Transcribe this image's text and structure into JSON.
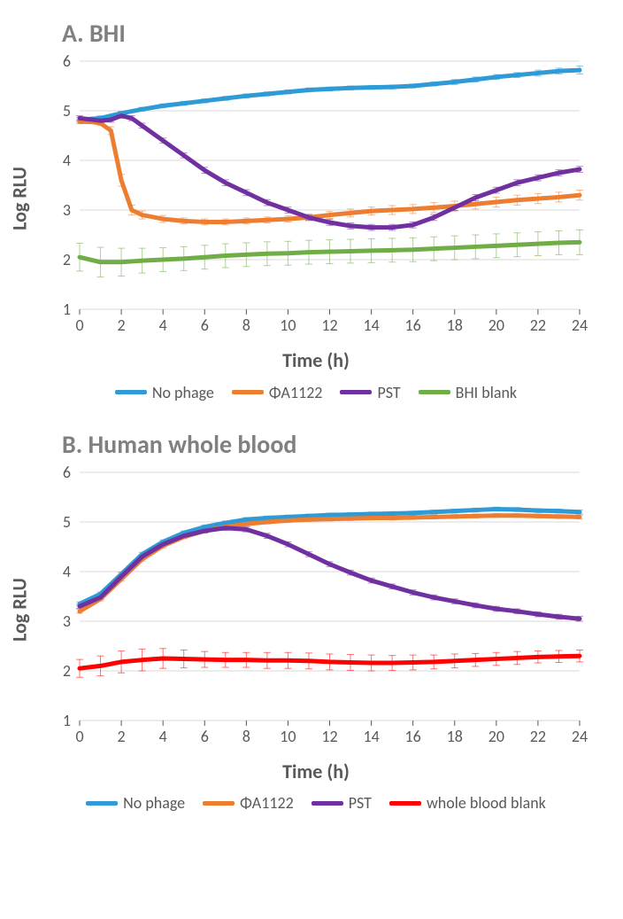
{
  "panelA": {
    "title": "A. BHI",
    "type": "line",
    "xlabel": "Time (h)",
    "ylabel": "Log RLU",
    "xlim": [
      0,
      24
    ],
    "ylim": [
      1,
      6
    ],
    "xtick_step": 2,
    "ytick_step": 1,
    "grid_color": "#d9d9d9",
    "background_color": "#ffffff",
    "title_fontsize": 28,
    "label_fontsize": 22,
    "tick_fontsize": 18,
    "line_width": 5,
    "series": [
      {
        "name": "No phage",
        "color": "#2e9bd6",
        "x": [
          0,
          1,
          2,
          3,
          4,
          5,
          6,
          7,
          8,
          9,
          10,
          11,
          12,
          13,
          14,
          15,
          16,
          17,
          18,
          19,
          20,
          21,
          22,
          23,
          24
        ],
        "y": [
          4.82,
          4.85,
          4.95,
          5.03,
          5.1,
          5.15,
          5.2,
          5.25,
          5.3,
          5.34,
          5.38,
          5.42,
          5.44,
          5.46,
          5.47,
          5.48,
          5.5,
          5.54,
          5.58,
          5.63,
          5.68,
          5.72,
          5.76,
          5.8,
          5.82
        ],
        "err": [
          0.05,
          0.05,
          0.04,
          0.04,
          0.04,
          0.04,
          0.04,
          0.04,
          0.04,
          0.04,
          0.04,
          0.04,
          0.04,
          0.04,
          0.04,
          0.04,
          0.04,
          0.04,
          0.05,
          0.05,
          0.05,
          0.05,
          0.06,
          0.06,
          0.08
        ]
      },
      {
        "name": "ΦA1122",
        "color": "#ed7d31",
        "x": [
          0,
          0.5,
          1,
          1.5,
          2,
          2.5,
          3,
          4,
          5,
          6,
          7,
          8,
          9,
          10,
          11,
          12,
          13,
          14,
          15,
          16,
          17,
          18,
          19,
          20,
          21,
          22,
          23,
          24
        ],
        "y": [
          4.78,
          4.78,
          4.75,
          4.6,
          3.6,
          3.0,
          2.9,
          2.82,
          2.78,
          2.76,
          2.76,
          2.78,
          2.8,
          2.82,
          2.85,
          2.9,
          2.94,
          2.98,
          3.0,
          3.02,
          3.05,
          3.08,
          3.12,
          3.16,
          3.2,
          3.23,
          3.26,
          3.3
        ],
        "err": [
          0.04,
          0.04,
          0.05,
          0.08,
          0.12,
          0.1,
          0.08,
          0.07,
          0.06,
          0.06,
          0.06,
          0.06,
          0.06,
          0.06,
          0.06,
          0.07,
          0.08,
          0.08,
          0.09,
          0.09,
          0.1,
          0.1,
          0.1,
          0.1,
          0.1,
          0.1,
          0.1,
          0.1
        ]
      },
      {
        "name": "PST",
        "color": "#7030a0",
        "x": [
          0,
          1,
          1.5,
          2,
          2.5,
          3,
          4,
          5,
          6,
          7,
          8,
          9,
          10,
          11,
          12,
          13,
          14,
          15,
          16,
          17,
          18,
          19,
          20,
          21,
          22,
          23,
          24
        ],
        "y": [
          4.85,
          4.8,
          4.82,
          4.9,
          4.85,
          4.7,
          4.4,
          4.1,
          3.8,
          3.55,
          3.35,
          3.15,
          3.0,
          2.85,
          2.75,
          2.68,
          2.65,
          2.65,
          2.7,
          2.85,
          3.05,
          3.25,
          3.4,
          3.55,
          3.65,
          3.75,
          3.82
        ],
        "err": [
          0.05,
          0.05,
          0.05,
          0.05,
          0.05,
          0.05,
          0.05,
          0.05,
          0.06,
          0.06,
          0.06,
          0.06,
          0.06,
          0.06,
          0.06,
          0.06,
          0.06,
          0.06,
          0.06,
          0.06,
          0.06,
          0.06,
          0.06,
          0.06,
          0.06,
          0.06,
          0.06
        ]
      },
      {
        "name": "BHI blank",
        "color": "#70ad47",
        "x": [
          0,
          1,
          2,
          3,
          4,
          5,
          6,
          7,
          8,
          9,
          10,
          11,
          12,
          13,
          14,
          15,
          16,
          17,
          18,
          19,
          20,
          21,
          22,
          23,
          24
        ],
        "y": [
          2.05,
          1.95,
          1.95,
          1.98,
          2.0,
          2.02,
          2.05,
          2.08,
          2.1,
          2.12,
          2.13,
          2.15,
          2.16,
          2.17,
          2.18,
          2.19,
          2.2,
          2.22,
          2.24,
          2.26,
          2.28,
          2.3,
          2.32,
          2.34,
          2.35
        ],
        "err": [
          0.28,
          0.3,
          0.28,
          0.25,
          0.24,
          0.24,
          0.24,
          0.24,
          0.24,
          0.24,
          0.24,
          0.24,
          0.24,
          0.24,
          0.24,
          0.24,
          0.24,
          0.24,
          0.24,
          0.24,
          0.24,
          0.24,
          0.24,
          0.24,
          0.25
        ]
      }
    ],
    "legend": [
      {
        "label": "No phage",
        "color": "#2e9bd6"
      },
      {
        "label": "ΦA1122",
        "color": "#ed7d31"
      },
      {
        "label": "PST",
        "color": "#7030a0"
      },
      {
        "label": "BHI blank",
        "color": "#70ad47"
      }
    ]
  },
  "panelB": {
    "title": "B. Human whole blood",
    "type": "line",
    "xlabel": "Time (h)",
    "ylabel": "Log RLU",
    "xlim": [
      0,
      24
    ],
    "ylim": [
      1,
      6
    ],
    "xtick_step": 2,
    "ytick_step": 1,
    "grid_color": "#d9d9d9",
    "background_color": "#ffffff",
    "title_fontsize": 28,
    "label_fontsize": 22,
    "tick_fontsize": 18,
    "line_width": 5,
    "series": [
      {
        "name": "No phage",
        "color": "#2e9bd6",
        "x": [
          0,
          1,
          2,
          3,
          4,
          5,
          6,
          7,
          8,
          9,
          10,
          11,
          12,
          13,
          14,
          15,
          16,
          17,
          18,
          19,
          20,
          21,
          22,
          23,
          24
        ],
        "y": [
          3.35,
          3.55,
          3.95,
          4.35,
          4.6,
          4.78,
          4.9,
          4.98,
          5.05,
          5.08,
          5.1,
          5.12,
          5.14,
          5.15,
          5.16,
          5.17,
          5.18,
          5.2,
          5.22,
          5.24,
          5.26,
          5.25,
          5.23,
          5.22,
          5.2
        ],
        "err": [
          0.04,
          0.04,
          0.04,
          0.04,
          0.04,
          0.04,
          0.04,
          0.04,
          0.04,
          0.04,
          0.04,
          0.04,
          0.04,
          0.04,
          0.04,
          0.04,
          0.04,
          0.04,
          0.04,
          0.04,
          0.04,
          0.04,
          0.04,
          0.04,
          0.04
        ]
      },
      {
        "name": "ΦA1122",
        "color": "#ed7d31",
        "x": [
          0,
          1,
          2,
          3,
          4,
          5,
          6,
          7,
          8,
          9,
          10,
          11,
          12,
          13,
          14,
          15,
          16,
          17,
          18,
          19,
          20,
          21,
          22,
          23,
          24
        ],
        "y": [
          3.2,
          3.45,
          3.85,
          4.25,
          4.52,
          4.7,
          4.82,
          4.9,
          4.96,
          5.0,
          5.03,
          5.05,
          5.06,
          5.07,
          5.08,
          5.08,
          5.09,
          5.1,
          5.11,
          5.12,
          5.13,
          5.13,
          5.12,
          5.11,
          5.1
        ],
        "err": [
          0.04,
          0.04,
          0.04,
          0.04,
          0.04,
          0.04,
          0.04,
          0.04,
          0.04,
          0.04,
          0.04,
          0.04,
          0.04,
          0.04,
          0.04,
          0.04,
          0.04,
          0.04,
          0.04,
          0.04,
          0.04,
          0.04,
          0.04,
          0.04,
          0.04
        ]
      },
      {
        "name": "PST",
        "color": "#7030a0",
        "x": [
          0,
          1,
          2,
          3,
          4,
          5,
          6,
          7,
          8,
          9,
          10,
          11,
          12,
          13,
          14,
          15,
          16,
          17,
          18,
          19,
          20,
          21,
          22,
          23,
          24
        ],
        "y": [
          3.3,
          3.48,
          3.9,
          4.3,
          4.55,
          4.72,
          4.82,
          4.88,
          4.85,
          4.72,
          4.55,
          4.35,
          4.15,
          3.98,
          3.82,
          3.7,
          3.58,
          3.48,
          3.4,
          3.32,
          3.25,
          3.2,
          3.14,
          3.09,
          3.05
        ],
        "err": [
          0.04,
          0.04,
          0.04,
          0.04,
          0.04,
          0.04,
          0.04,
          0.05,
          0.05,
          0.05,
          0.05,
          0.05,
          0.05,
          0.05,
          0.05,
          0.05,
          0.05,
          0.05,
          0.05,
          0.05,
          0.05,
          0.05,
          0.05,
          0.05,
          0.05
        ]
      },
      {
        "name": "whole blood blank",
        "color": "#ff0000",
        "x": [
          0,
          1,
          2,
          3,
          4,
          5,
          6,
          7,
          8,
          9,
          10,
          11,
          12,
          13,
          14,
          15,
          16,
          17,
          18,
          19,
          20,
          21,
          22,
          23,
          24
        ],
        "y": [
          2.05,
          2.1,
          2.18,
          2.22,
          2.25,
          2.24,
          2.23,
          2.22,
          2.22,
          2.21,
          2.21,
          2.2,
          2.18,
          2.17,
          2.16,
          2.16,
          2.17,
          2.18,
          2.2,
          2.22,
          2.24,
          2.26,
          2.28,
          2.29,
          2.3
        ],
        "err": [
          0.18,
          0.2,
          0.22,
          0.22,
          0.2,
          0.18,
          0.16,
          0.15,
          0.15,
          0.16,
          0.16,
          0.16,
          0.16,
          0.16,
          0.16,
          0.15,
          0.15,
          0.14,
          0.14,
          0.13,
          0.13,
          0.13,
          0.12,
          0.12,
          0.12
        ]
      }
    ],
    "legend": [
      {
        "label": "No phage",
        "color": "#2e9bd6"
      },
      {
        "label": "ΦA1122",
        "color": "#ed7d31"
      },
      {
        "label": "PST",
        "color": "#7030a0"
      },
      {
        "label": "whole blood blank",
        "color": "#ff0000"
      }
    ]
  }
}
